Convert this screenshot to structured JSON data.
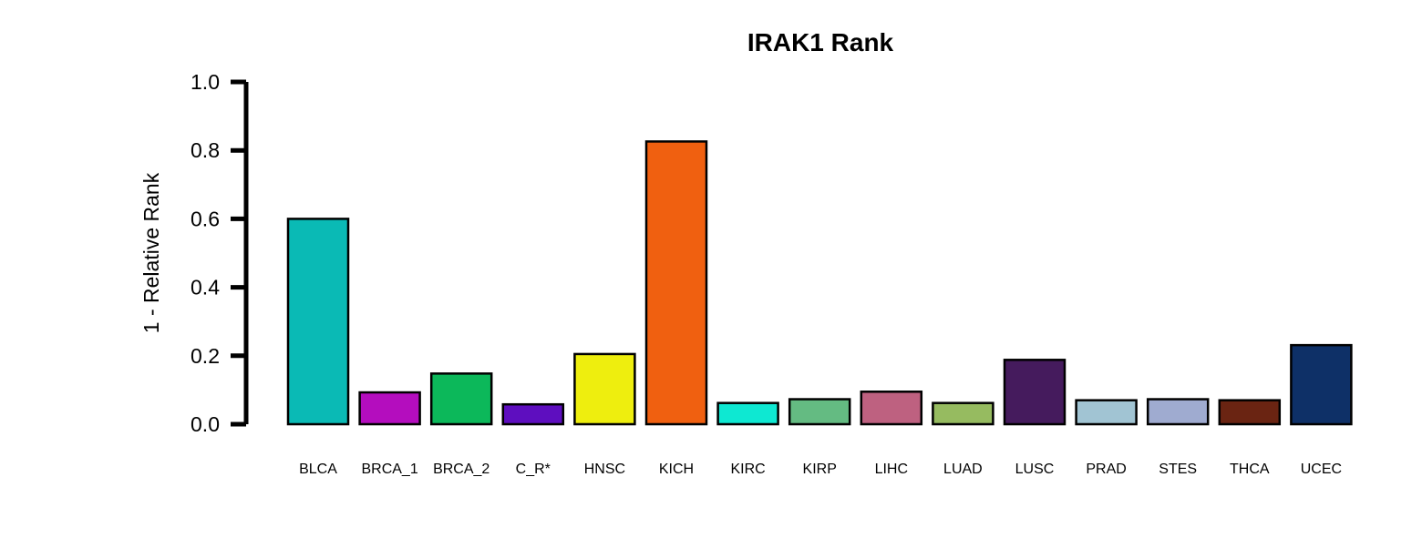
{
  "chart_data": {
    "type": "bar",
    "title": "IRAK1 Rank",
    "xlabel": "",
    "ylabel": "1 - Relative Rank",
    "ylim": [
      0,
      1
    ],
    "yticks": [
      "0.0",
      "0.2",
      "0.4",
      "0.6",
      "0.8",
      "1.0"
    ],
    "ytick_values": [
      0,
      0.2,
      0.4,
      0.6,
      0.8,
      1.0
    ],
    "grid": false,
    "categories": [
      "BLCA",
      "BRCA_1",
      "BRCA_2",
      "C_R*",
      "HNSC",
      "KICH",
      "KIRC",
      "KIRP",
      "LIHC",
      "LUAD",
      "LUSC",
      "PRAD",
      "STES",
      "THCA",
      "UCEC"
    ],
    "values": [
      0.6,
      0.093,
      0.148,
      0.058,
      0.205,
      0.826,
      0.062,
      0.073,
      0.095,
      0.062,
      0.188,
      0.07,
      0.073,
      0.07,
      0.231
    ],
    "colors": [
      "#0ABAB5",
      "#B40DBE",
      "#0CB85A",
      "#5E0EBF",
      "#EEEE0E",
      "#F06010",
      "#0EE8D2",
      "#64BB82",
      "#BE6180",
      "#96BB60",
      "#451B5D",
      "#A1C4D3",
      "#9FABD0",
      "#6A2412",
      "#0E3067"
    ]
  }
}
